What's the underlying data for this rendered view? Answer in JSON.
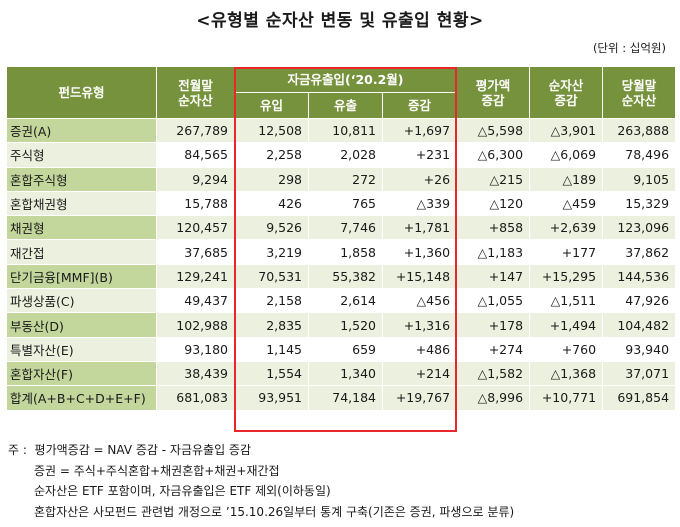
{
  "title": "<유형별 순자산 변동 및 유출입 현황>",
  "unit": "(단위 : 십억원)",
  "headers": {
    "fund_type": "펀드유형",
    "prev_assets": "전월말\n순자산",
    "flow_group": "자금유출입(‘20.2월)",
    "inflow": "유입",
    "outflow": "유출",
    "net": "증감",
    "valuation": "평가액\n증감",
    "asset_change": "순자산\n증감",
    "curr_assets": "당월말\n순자산"
  },
  "rows": [
    {
      "type": "증권(A)",
      "prev": "267,789",
      "in": "12,508",
      "out": "10,811",
      "net": "+1,697",
      "val": "△5,598",
      "chg": "△3,901",
      "curr": "263,888"
    },
    {
      "type": "주식형",
      "prev": "84,565",
      "in": "2,258",
      "out": "2,028",
      "net": "+231",
      "val": "△6,300",
      "chg": "△6,069",
      "curr": "78,496"
    },
    {
      "type": "혼합주식형",
      "prev": "9,294",
      "in": "298",
      "out": "272",
      "net": "+26",
      "val": "△215",
      "chg": "△189",
      "curr": "9,105"
    },
    {
      "type": "혼합채권형",
      "prev": "15,788",
      "in": "426",
      "out": "765",
      "net": "△339",
      "val": "△120",
      "chg": "△459",
      "curr": "15,329"
    },
    {
      "type": "채권형",
      "prev": "120,457",
      "in": "9,526",
      "out": "7,746",
      "net": "+1,781",
      "val": "+858",
      "chg": "+2,639",
      "curr": "123,096"
    },
    {
      "type": "재간접",
      "prev": "37,685",
      "in": "3,219",
      "out": "1,858",
      "net": "+1,360",
      "val": "△1,183",
      "chg": "+177",
      "curr": "37,862"
    },
    {
      "type": "단기금융[MMF](B)",
      "prev": "129,241",
      "in": "70,531",
      "out": "55,382",
      "net": "+15,148",
      "val": "+147",
      "chg": "+15,295",
      "curr": "144,536"
    },
    {
      "type": "파생상품(C)",
      "prev": "49,437",
      "in": "2,158",
      "out": "2,614",
      "net": "△456",
      "val": "△1,055",
      "chg": "△1,511",
      "curr": "47,926"
    },
    {
      "type": "부동산(D)",
      "prev": "102,988",
      "in": "2,835",
      "out": "1,520",
      "net": "+1,316",
      "val": "+178",
      "chg": "+1,494",
      "curr": "104,482"
    },
    {
      "type": "특별자산(E)",
      "prev": "93,180",
      "in": "1,145",
      "out": "659",
      "net": "+486",
      "val": "+274",
      "chg": "+760",
      "curr": "93,940"
    },
    {
      "type": "혼합자산(F)",
      "prev": "38,439",
      "in": "1,554",
      "out": "1,340",
      "net": "+214",
      "val": "△1,582",
      "chg": "△1,368",
      "curr": "37,071"
    },
    {
      "type": "합계(A+B+C+D+E+F)",
      "prev": "681,083",
      "in": "93,951",
      "out": "74,184",
      "net": "+19,767",
      "val": "△8,996",
      "chg": "+10,771",
      "curr": "691,854"
    }
  ],
  "notes": {
    "prefix": "주 :",
    "lines": [
      "평가액증감 = NAV 증감 - 자금유출입 증감",
      "증권 = 주식+주식혼합+채권혼합+채권+재간접",
      "순자산은 ETF 포함이며, 자금유출입은 ETF 제외(이하동일)",
      "혼합자산은 사모펀드 관련법 개정으로 ’15.10.26일부터 통계 구축(기존은 증권, 파생으로 분류)"
    ]
  },
  "colors": {
    "header": "#76923c",
    "label": "#c3d69b",
    "light": "#ebf1de",
    "highlight_border": "#e8262b"
  }
}
